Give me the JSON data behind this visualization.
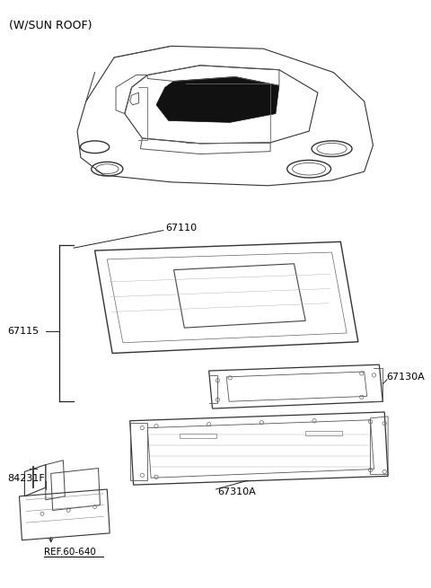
{
  "title": "(W/SUN ROOF)",
  "background_color": "#ffffff",
  "text_color": "#000000",
  "label_67110": "67110",
  "label_67115": "67115",
  "label_67130A": "67130A",
  "label_67310A": "67310A",
  "label_84231F": "84231F",
  "label_ref": "REF.60-640",
  "title_fontsize": 9,
  "label_fontsize": 8
}
